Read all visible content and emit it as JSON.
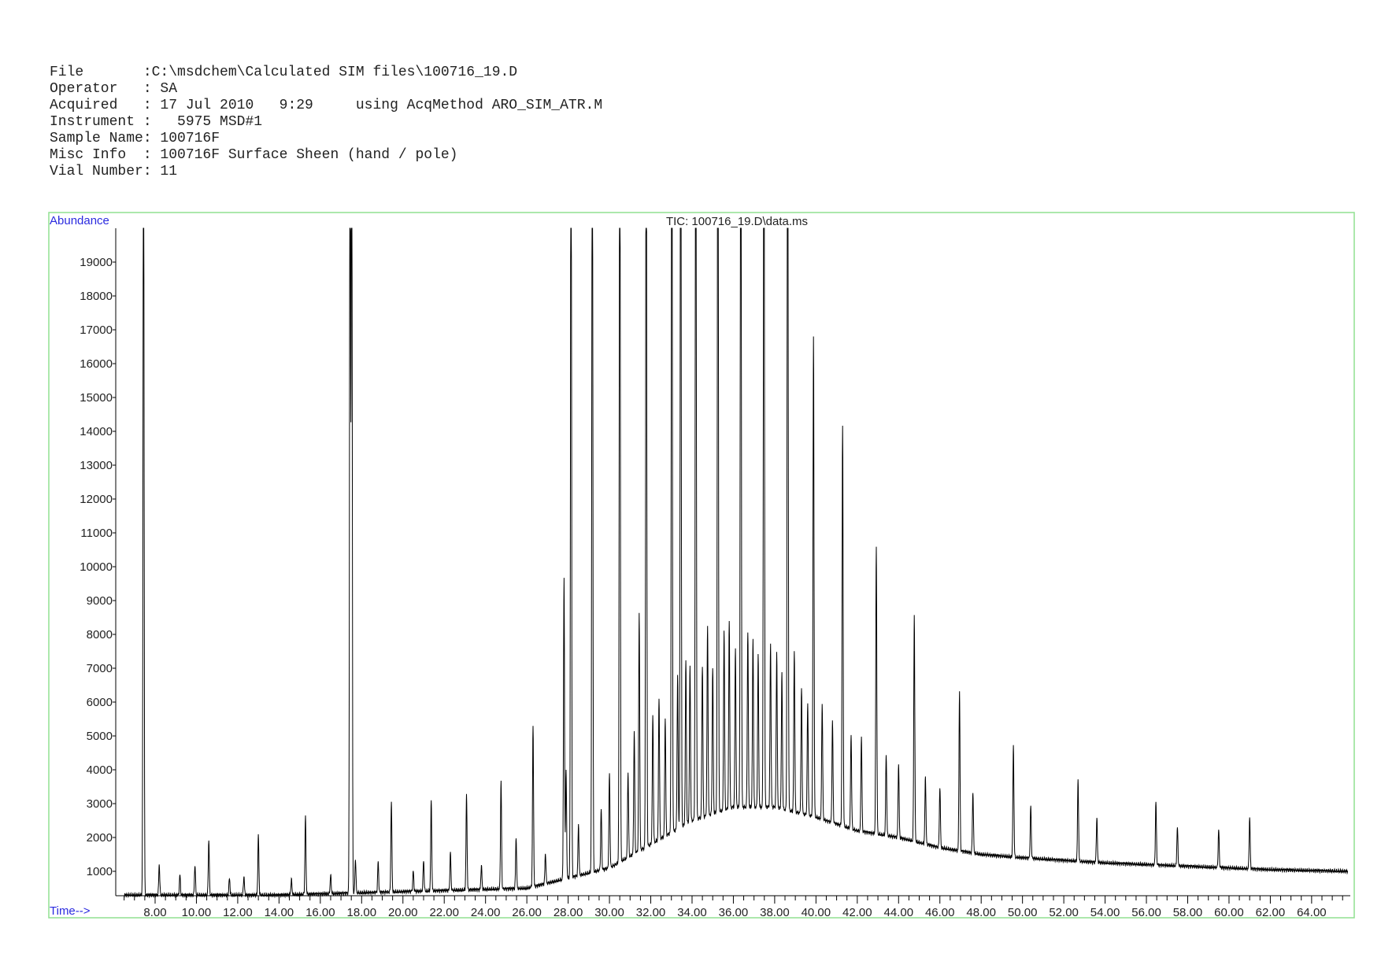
{
  "header": {
    "lines": [
      "File       :C:\\msdchem\\Calculated SIM files\\100716_19.D",
      "Operator   : SA",
      "Acquired   : 17 Jul 2010   9:29     using AcqMethod ARO_SIM_ATR.M",
      "Instrument :   5975 MSD#1",
      "Sample Name: 100716F",
      "Misc Info  : 100716F Surface Sheen (hand / pole)",
      "Vial Number: 11"
    ]
  },
  "chart_data": {
    "type": "line",
    "title": "TIC: 100716_19.D\\data.ms",
    "ylabel": "Abundance",
    "xlabel": "Time-->",
    "xlim": [
      6.5,
      65.75
    ],
    "ylim": [
      0,
      20000
    ],
    "grid": false,
    "frame_color": "#90e090",
    "label_color": "#2a2adf",
    "x_ticks": [
      "8.00",
      "10.00",
      "12.00",
      "14.00",
      "16.00",
      "18.00",
      "20.00",
      "22.00",
      "24.00",
      "26.00",
      "28.00",
      "30.00",
      "32.00",
      "34.00",
      "36.00",
      "38.00",
      "40.00",
      "42.00",
      "44.00",
      "46.00",
      "48.00",
      "50.00",
      "52.00",
      "54.00",
      "56.00",
      "58.00",
      "60.00",
      "62.00",
      "64.00"
    ],
    "y_ticks": [
      "1000",
      "2000",
      "3000",
      "4000",
      "5000",
      "6000",
      "7000",
      "8000",
      "9000",
      "10000",
      "11000",
      "12000",
      "13000",
      "14000",
      "15000",
      "16000",
      "17000",
      "18000",
      "19000"
    ],
    "baseline": [
      [
        6.5,
        300
      ],
      [
        14,
        300
      ],
      [
        20,
        400
      ],
      [
        26,
        500
      ],
      [
        28,
        800
      ],
      [
        30,
        1100
      ],
      [
        32,
        1800
      ],
      [
        34,
        2500
      ],
      [
        36,
        2900
      ],
      [
        38,
        2900
      ],
      [
        40,
        2600
      ],
      [
        42,
        2200
      ],
      [
        44,
        2000
      ],
      [
        46,
        1700
      ],
      [
        48,
        1500
      ],
      [
        50,
        1400
      ],
      [
        54,
        1250
      ],
      [
        58,
        1150
      ],
      [
        62,
        1050
      ],
      [
        65.75,
        1000
      ]
    ],
    "peaks": [
      [
        7.44,
        25000
      ],
      [
        8.2,
        900
      ],
      [
        9.2,
        600
      ],
      [
        9.93,
        900
      ],
      [
        10.6,
        1600
      ],
      [
        11.6,
        500
      ],
      [
        12.3,
        550
      ],
      [
        13.0,
        1750
      ],
      [
        14.6,
        450
      ],
      [
        15.28,
        2300
      ],
      [
        16.5,
        550
      ],
      [
        17.44,
        25000
      ],
      [
        17.52,
        25000
      ],
      [
        17.7,
        1000
      ],
      [
        18.8,
        900
      ],
      [
        19.44,
        2650
      ],
      [
        20.5,
        600
      ],
      [
        21.0,
        900
      ],
      [
        21.37,
        2650
      ],
      [
        22.3,
        1100
      ],
      [
        23.08,
        2800
      ],
      [
        23.8,
        700
      ],
      [
        24.75,
        3200
      ],
      [
        25.48,
        1500
      ],
      [
        26.3,
        4700
      ],
      [
        26.9,
        900
      ],
      [
        27.8,
        8900
      ],
      [
        27.9,
        3200
      ],
      [
        28.14,
        25000
      ],
      [
        28.5,
        1500
      ],
      [
        29.17,
        25000
      ],
      [
        29.6,
        1800
      ],
      [
        30.0,
        2800
      ],
      [
        30.5,
        25000
      ],
      [
        30.9,
        2500
      ],
      [
        31.2,
        3600
      ],
      [
        31.44,
        7000
      ],
      [
        31.78,
        25000
      ],
      [
        32.1,
        3800
      ],
      [
        32.4,
        4200
      ],
      [
        32.7,
        3500
      ],
      [
        33.02,
        25000
      ],
      [
        33.3,
        4500
      ],
      [
        33.45,
        25000
      ],
      [
        33.7,
        4800
      ],
      [
        33.9,
        4600
      ],
      [
        34.18,
        25000
      ],
      [
        34.5,
        4500
      ],
      [
        34.75,
        5600
      ],
      [
        35.0,
        4300
      ],
      [
        35.25,
        25000
      ],
      [
        35.55,
        5300
      ],
      [
        35.8,
        5500
      ],
      [
        36.1,
        4700
      ],
      [
        36.36,
        25000
      ],
      [
        36.7,
        5200
      ],
      [
        36.95,
        5000
      ],
      [
        37.2,
        4500
      ],
      [
        37.48,
        25000
      ],
      [
        37.8,
        4800
      ],
      [
        38.1,
        4600
      ],
      [
        38.35,
        4000
      ],
      [
        38.63,
        25000
      ],
      [
        38.95,
        4800
      ],
      [
        39.3,
        3700
      ],
      [
        39.6,
        3300
      ],
      [
        39.88,
        14200
      ],
      [
        40.3,
        3400
      ],
      [
        40.8,
        3000
      ],
      [
        41.29,
        11800
      ],
      [
        41.7,
        2800
      ],
      [
        42.2,
        2800
      ],
      [
        42.92,
        8500
      ],
      [
        43.4,
        2400
      ],
      [
        44.0,
        2200
      ],
      [
        44.76,
        6700
      ],
      [
        45.3,
        2000
      ],
      [
        46.0,
        1800
      ],
      [
        46.95,
        4700
      ],
      [
        47.6,
        1800
      ],
      [
        49.56,
        3300
      ],
      [
        50.4,
        1550
      ],
      [
        52.69,
        2400
      ],
      [
        53.6,
        1300
      ],
      [
        56.46,
        1850
      ],
      [
        57.5,
        1150
      ],
      [
        59.5,
        1120
      ],
      [
        61.0,
        1500
      ]
    ]
  }
}
